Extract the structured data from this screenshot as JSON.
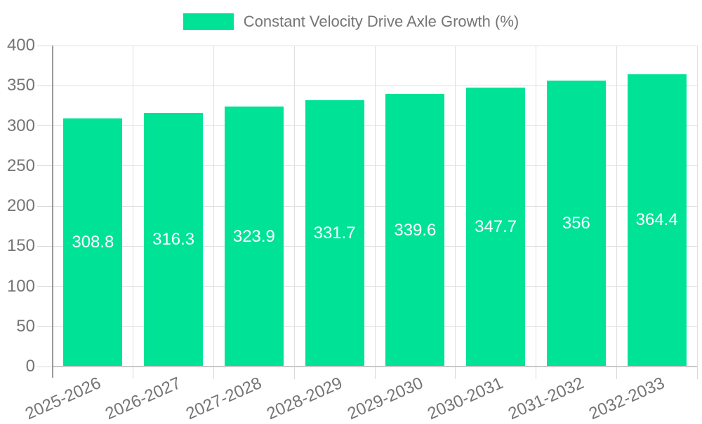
{
  "chart_data": {
    "type": "bar",
    "title": "Constant Velocity Drive Axle Growth (%)",
    "series_name": "Constant Velocity Drive Axle Growth (%)",
    "categories": [
      "2025-2026",
      "2026-2027",
      "2027-2028",
      "2028-2029",
      "2029-2030",
      "2030-2031",
      "2031-2032",
      "2032-2033"
    ],
    "values": [
      308.8,
      316.3,
      323.9,
      331.7,
      339.6,
      347.7,
      356,
      364.4
    ],
    "xlabel": "",
    "ylabel": "",
    "ylim": [
      0,
      400
    ],
    "yticks": [
      0,
      50,
      100,
      150,
      200,
      250,
      300,
      350,
      400
    ],
    "grid": true,
    "legend_position": "top-center",
    "value_label_style": "inside-vertical-center-white",
    "x_label_rotation_deg": -24,
    "colors": {
      "bar": "#00e396",
      "gridline": "#e0e0e0",
      "tick": "#d8d8d8",
      "axis_line": "#9a9a9a",
      "baseline": "#c9c9c9",
      "axis_text": "#757575",
      "legend_text": "#757575",
      "value_text": "#ffffff",
      "background": "#ffffff"
    }
  }
}
